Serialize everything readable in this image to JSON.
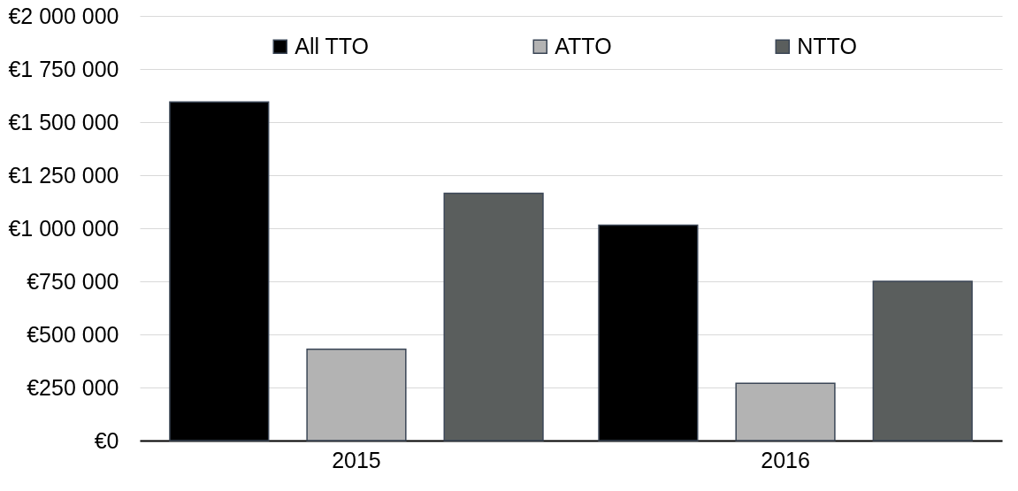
{
  "chart_data": {
    "type": "bar",
    "categories": [
      "2015",
      "2016"
    ],
    "series": [
      {
        "name": "All TTO",
        "color": "#000000",
        "values": [
          1595000,
          1015000
        ]
      },
      {
        "name": "ATTO",
        "color": "#b3b3b3",
        "values": [
          430000,
          270000
        ]
      },
      {
        "name": "NTTO",
        "color": "#5a5e5d",
        "values": [
          1165000,
          750000
        ]
      }
    ],
    "ylim": [
      0,
      2000000
    ],
    "yticks": [
      {
        "value": 0,
        "label": "€0"
      },
      {
        "value": 250000,
        "label": "€250 000"
      },
      {
        "value": 500000,
        "label": "€500 000"
      },
      {
        "value": 750000,
        "label": "€750 000"
      },
      {
        "value": 1000000,
        "label": "€1 000 000"
      },
      {
        "value": 1250000,
        "label": "€1 250 000"
      },
      {
        "value": 1500000,
        "label": "€1 500 000"
      },
      {
        "value": 1750000,
        "label": "€1 750 000"
      },
      {
        "value": 2000000,
        "label": "€2 000 000"
      }
    ],
    "grid": "y",
    "legend": "top"
  }
}
